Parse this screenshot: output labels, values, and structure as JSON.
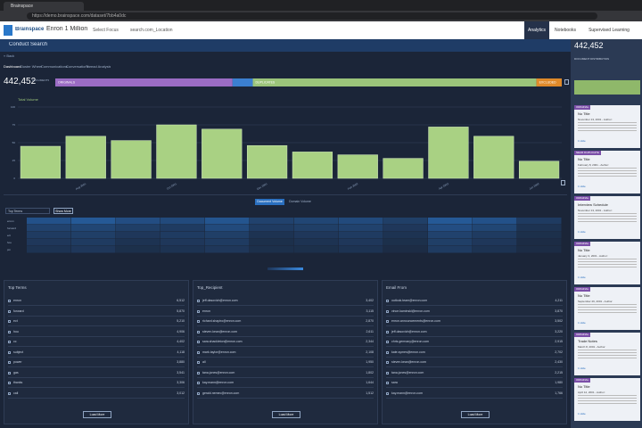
{
  "browser": {
    "tab": "Brainspace",
    "url": "https://demo.brainspace.com/dataset/7bb4a0dc"
  },
  "app": {
    "logo": "Brainspace",
    "dataset": "Enron 1 Million",
    "focus": "Select Focus",
    "search": "search.com_Location",
    "nav": [
      "Analytics",
      "Notebooks",
      "Supervised Learning"
    ]
  },
  "page": {
    "title": "Conduct Search",
    "back": "« Back",
    "tabs": [
      "Dashboard",
      "Cluster Wheel",
      "Communications",
      "Conversations",
      "Thread Analysis"
    ]
  },
  "summary": {
    "count": "442,452",
    "count_label": "DOCUMENTS",
    "segments": [
      {
        "label": "ORIGINALS",
        "value": 35,
        "color": "#9b6cc4"
      },
      {
        "value": 4,
        "color": "#3b7fd0"
      },
      {
        "label": "DUPLICATES",
        "value": 56,
        "color": "#9bc47a"
      },
      {
        "label": "EXCLUDED",
        "value": 5,
        "color": "#e08a2a"
      }
    ]
  },
  "chart_data": {
    "type": "bar",
    "title": "Total Volume",
    "color": "#a9d183",
    "categories": [
      null,
      "Aug 2001",
      null,
      "Oct 2001",
      null,
      "Dec 2001",
      null,
      "Feb 2002",
      null,
      "Apr 2002",
      null,
      "Jun 2002"
    ],
    "values": [
      45,
      59,
      53,
      75,
      69,
      46,
      37,
      33,
      28,
      72,
      59,
      24
    ],
    "ylim": [
      0,
      100
    ],
    "yticks": [
      0,
      25,
      50,
      75,
      100
    ],
    "grid": true
  },
  "volume_toggle": [
    "Document Volume",
    "Domain Volume"
  ],
  "heatmap": {
    "selector": "Top Terms",
    "button": "Show More",
    "rows": [
      {
        "name": "enron",
        "values": [
          60,
          70,
          55,
          50,
          65,
          40,
          45,
          50,
          35,
          70,
          60,
          30
        ]
      },
      {
        "name": "forward",
        "values": [
          40,
          45,
          35,
          30,
          50,
          30,
          35,
          40,
          25,
          55,
          45,
          20
        ]
      },
      {
        "name": "ect",
        "values": [
          30,
          35,
          25,
          30,
          35,
          20,
          25,
          30,
          20,
          40,
          30,
          15
        ]
      },
      {
        "name": "hou",
        "values": [
          25,
          30,
          20,
          25,
          30,
          15,
          20,
          25,
          15,
          35,
          25,
          10
        ]
      },
      {
        "name": "pm",
        "values": [
          20,
          25,
          15,
          20,
          25,
          15,
          15,
          20,
          10,
          30,
          20,
          10
        ]
      }
    ]
  },
  "lists": [
    {
      "title": "Top Terms",
      "button": "Load More",
      "items": [
        [
          "enron",
          "6,512"
        ],
        [
          "forward",
          "5,870"
        ],
        [
          "ect",
          "5,210"
        ],
        [
          "hou",
          "4,906"
        ],
        [
          "cc",
          "4,402"
        ],
        [
          "subject",
          "4,118"
        ],
        [
          "power",
          "3,880"
        ],
        [
          "gas",
          "3,541"
        ],
        [
          "thanks",
          "3,306"
        ],
        [
          "call",
          "3,012"
        ]
      ]
    },
    {
      "title": "Top_Recipient",
      "button": "Load More",
      "items": [
        [
          "jeff.dasovich@enron.com",
          "3,402"
        ],
        [
          "enron",
          "3,115"
        ],
        [
          "richard.shapiro@enron.com",
          "2,870"
        ],
        [
          "steven.kean@enron.com",
          "2,611"
        ],
        [
          "sara.shackleton@enron.com",
          "2,344"
        ],
        [
          "mark.taylor@enron.com",
          "2,108"
        ],
        [
          "all",
          "1,950"
        ],
        [
          "tana.jones@enron.com",
          "1,802"
        ],
        [
          "kay.mann@enron.com",
          "1,644"
        ],
        [
          "gerald.nemec@enron.com",
          "1,512"
        ]
      ]
    },
    {
      "title": "Email From",
      "button": "Load More",
      "items": [
        [
          "outlook.team@enron.com",
          "4,211"
        ],
        [
          "vince.kaminski@enron.com",
          "3,870"
        ],
        [
          "enron.announcements@enron.com",
          "3,502"
        ],
        [
          "jeff.dasovich@enron.com",
          "3,220"
        ],
        [
          "chris.germany@enron.com",
          "2,915"
        ],
        [
          "kate.symes@enron.com",
          "2,702"
        ],
        [
          "steven.kean@enron.com",
          "2,430"
        ],
        [
          "tana.jones@enron.com",
          "2,215"
        ],
        [
          "sara",
          "1,980"
        ],
        [
          "kay.mann@enron.com",
          "1,766"
        ]
      ]
    }
  ],
  "side": {
    "count": "442,452",
    "label": "DOCUMENT DISTRIBUTION",
    "cards": [
      {
        "tag": "ORIGINAL",
        "title": "No Title",
        "meta": "November 13, 2001 - Author:",
        "action": "1 Hide"
      },
      {
        "tag": "NEAR DUPLICATE",
        "title": "No Title",
        "meta": "February 8, 2001 - Author:",
        "action": "1 Hide"
      },
      {
        "tag": "ORIGINAL",
        "title": "Interview Schedule",
        "meta": "November 13, 2001 - Author:",
        "action": "1 Hide"
      },
      {
        "tag": "ORIGINAL",
        "title": "No Title",
        "meta": "January 3, 2001 - Author:",
        "action": "1 Hide"
      },
      {
        "tag": "ORIGINAL",
        "title": "No Title",
        "meta": "September 29, 2001 - Author:",
        "action": "1 Hide"
      },
      {
        "tag": "ORIGINAL",
        "title": "Trade Notes",
        "meta": "March 8, 2001 - Author:",
        "action": "1 Hide"
      },
      {
        "tag": "ORIGINAL",
        "title": "No Title",
        "meta": "April 12, 2001 - Author:",
        "action": "1 Hide"
      }
    ]
  }
}
